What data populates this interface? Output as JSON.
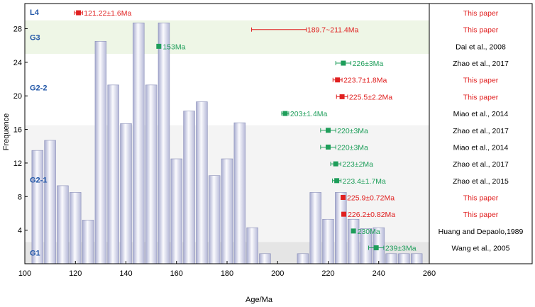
{
  "chart_data": {
    "type": "bar",
    "xlabel": "Age/Ma",
    "ylabel": "Frequence",
    "xlim": [
      100,
      260
    ],
    "ylim": [
      0,
      31
    ],
    "x_ticks": [
      100,
      120,
      140,
      160,
      180,
      200,
      220,
      240,
      260
    ],
    "y_ticks": [
      4,
      8,
      12,
      16,
      20,
      24,
      28
    ],
    "bin_width": 5,
    "bins": [
      {
        "x": 105,
        "value": 13.5
      },
      {
        "x": 110,
        "value": 14.7
      },
      {
        "x": 115,
        "value": 9.3
      },
      {
        "x": 120,
        "value": 8.5
      },
      {
        "x": 125,
        "value": 5.2
      },
      {
        "x": 130,
        "value": 26.5
      },
      {
        "x": 135,
        "value": 21.3
      },
      {
        "x": 140,
        "value": 16.7
      },
      {
        "x": 145,
        "value": 28.7
      },
      {
        "x": 150,
        "value": 21.3
      },
      {
        "x": 155,
        "value": 28.7
      },
      {
        "x": 160,
        "value": 12.5
      },
      {
        "x": 165,
        "value": 18.2
      },
      {
        "x": 170,
        "value": 19.3
      },
      {
        "x": 175,
        "value": 10.5
      },
      {
        "x": 180,
        "value": 12.5
      },
      {
        "x": 185,
        "value": 16.8
      },
      {
        "x": 190,
        "value": 4.3
      },
      {
        "x": 195,
        "value": 1.2
      },
      {
        "x": 210,
        "value": 1.2
      },
      {
        "x": 215,
        "value": 8.5
      },
      {
        "x": 220,
        "value": 5.3
      },
      {
        "x": 225,
        "value": 8.5
      },
      {
        "x": 230,
        "value": 5.3
      },
      {
        "x": 235,
        "value": 4.2
      },
      {
        "x": 240,
        "value": 4.3
      },
      {
        "x": 245,
        "value": 1.2
      },
      {
        "x": 250,
        "value": 1.2
      },
      {
        "x": 255,
        "value": 1.2
      }
    ],
    "group_bands": [
      {
        "label": "L4",
        "y0": 29,
        "y1": 31,
        "color": "#ffffff",
        "label_y": 30
      },
      {
        "label": "G3",
        "y0": 25,
        "y1": 29,
        "color": "#eef6e6",
        "label_y": 27
      },
      {
        "label": "G2-2",
        "y0": 16.5,
        "y1": 25,
        "color": "#ffffff",
        "label_y": 21
      },
      {
        "label": "G2-1",
        "y0": 2.6,
        "y1": 16.5,
        "color": "#f4f4f4",
        "label_y": 10
      },
      {
        "label": "G1",
        "y0": 0,
        "y1": 2.6,
        "color": "#e5e5e5",
        "label_y": 1.3
      }
    ],
    "dates": [
      {
        "label": "121.22±1.6Ma",
        "center": 121.22,
        "err": 1.6,
        "y": 29.9,
        "color": "#e02020",
        "reference": "This paper"
      },
      {
        "label": "189.7~211.4Ma",
        "center": 211.4,
        "range": [
          189.7,
          211.4
        ],
        "y": 27.9,
        "color": "#e02020",
        "reference": "This paper"
      },
      {
        "label": "153Ma",
        "center": 153,
        "err": 0,
        "y": 25.9,
        "color": "#1e9e5a",
        "reference": "Dai et al., 2008"
      },
      {
        "label": "226±3Ma",
        "center": 226,
        "err": 3,
        "y": 23.9,
        "color": "#1e9e5a",
        "reference": "Zhao et al., 2017"
      },
      {
        "label": "223.7±1.8Ma",
        "center": 223.7,
        "err": 1.8,
        "y": 21.9,
        "color": "#e02020",
        "reference": "This paper"
      },
      {
        "label": "225.5±2.2Ma",
        "center": 225.5,
        "err": 2.2,
        "y": 19.9,
        "color": "#e02020",
        "reference": "This paper"
      },
      {
        "label": "203±1.4Ma",
        "center": 203,
        "err": 1.4,
        "y": 17.9,
        "color": "#1e9e5a",
        "reference": "Miao et al., 2014"
      },
      {
        "label": "220±3Ma",
        "center": 220,
        "err": 3,
        "y": 15.9,
        "color": "#1e9e5a",
        "reference": "Zhao et al., 2017"
      },
      {
        "label": "220±3Ma",
        "center": 220,
        "err": 3,
        "y": 13.9,
        "color": "#1e9e5a",
        "reference": "Miao et al., 2014"
      },
      {
        "label": "223±2Ma",
        "center": 223,
        "err": 2,
        "y": 11.9,
        "color": "#1e9e5a",
        "reference": "Zhao et al., 2017"
      },
      {
        "label": "223.4±1.7Ma",
        "center": 223.4,
        "err": 1.7,
        "y": 9.9,
        "color": "#1e9e5a",
        "reference": "Zhao et al., 2015"
      },
      {
        "label": "225.9±0.72Ma",
        "center": 225.9,
        "err": 0.72,
        "y": 7.9,
        "color": "#e02020",
        "reference": "This paper"
      },
      {
        "label": "226.2±0.82Ma",
        "center": 226.2,
        "err": 0.82,
        "y": 5.9,
        "color": "#e02020",
        "reference": "This paper"
      },
      {
        "label": "230Ma",
        "center": 230,
        "err": 0,
        "y": 3.9,
        "color": "#1e9e5a",
        "reference": "Huang and Depaolo,1989"
      },
      {
        "label": "239±3Ma",
        "center": 239,
        "err": 3,
        "y": 1.9,
        "color": "#1e9e5a",
        "reference": "Wang et al., 2005"
      }
    ],
    "colors": {
      "bar_edge": "#8a8fb8",
      "bar_light": "#fbfbfe",
      "bar_dark": "#a8acd0",
      "group_label": "#2257a8",
      "this_paper": "#e02020",
      "literature": "#1e9e5a"
    }
  }
}
